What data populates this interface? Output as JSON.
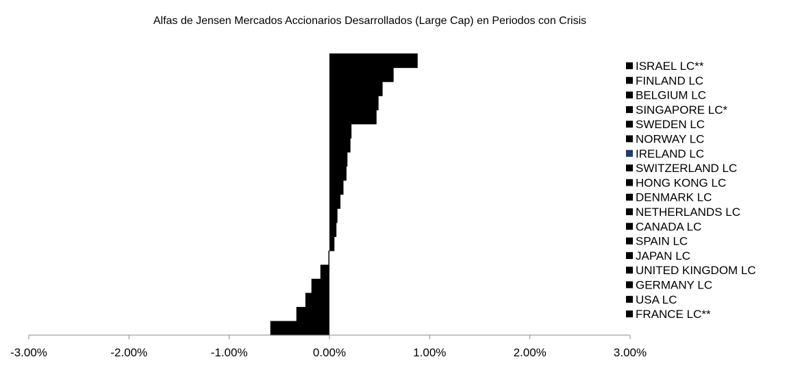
{
  "chart_data": {
    "type": "bar",
    "orientation": "horizontal",
    "title": "Alfas de Jensen Mercados Accionarios Desarrollados (Large Cap) en Periodos con Crisis",
    "xlim": [
      -0.03,
      0.03
    ],
    "ticks": [
      -0.03,
      -0.02,
      -0.01,
      0.0,
      0.01,
      0.02,
      0.03
    ],
    "tick_labels": [
      "-3.00%",
      "-2.00%",
      "-1.00%",
      "0.00%",
      "1.00%",
      "2.00%",
      "3.00%"
    ],
    "grid": false,
    "legend_position": "right",
    "series": [
      {
        "name": "ISRAEL LC**",
        "value": 0.0088,
        "color": "#000000"
      },
      {
        "name": "FINLAND LC",
        "value": 0.0064,
        "color": "#000000"
      },
      {
        "name": "BELGIUM LC",
        "value": 0.0053,
        "color": "#000000"
      },
      {
        "name": "SINGAPORE LC*",
        "value": 0.0049,
        "color": "#000000"
      },
      {
        "name": "SWEDEN LC",
        "value": 0.0047,
        "color": "#000000"
      },
      {
        "name": "NORWAY LC",
        "value": 0.0022,
        "color": "#000000"
      },
      {
        "name": "IRELAND LC",
        "value": 0.0021,
        "color": "#1F3C6E"
      },
      {
        "name": "SWITZERLAND LC",
        "value": 0.0018,
        "color": "#000000"
      },
      {
        "name": "HONG KONG LC",
        "value": 0.0017,
        "color": "#000000"
      },
      {
        "name": "DENMARK LC",
        "value": 0.0014,
        "color": "#000000"
      },
      {
        "name": "NETHERLANDS LC",
        "value": 0.0011,
        "color": "#000000"
      },
      {
        "name": "CANADA LC",
        "value": 0.0008,
        "color": "#000000"
      },
      {
        "name": "SPAIN LC",
        "value": 0.0007,
        "color": "#000000"
      },
      {
        "name": "JAPAN LC",
        "value": 0.0005,
        "color": "#000000"
      },
      {
        "name": "UNITED KINGDOM LC",
        "value": -0.0001,
        "color": "#000000"
      },
      {
        "name": "GERMANY LC",
        "value": -0.0009,
        "color": "#000000"
      },
      {
        "name": "USA LC",
        "value": -0.0018,
        "color": "#000000"
      },
      {
        "name": "FRANCE LC**",
        "value": -0.0059,
        "color": "#000000"
      }
    ],
    "extra_bars": [
      -0.0024,
      -0.0033
    ]
  }
}
